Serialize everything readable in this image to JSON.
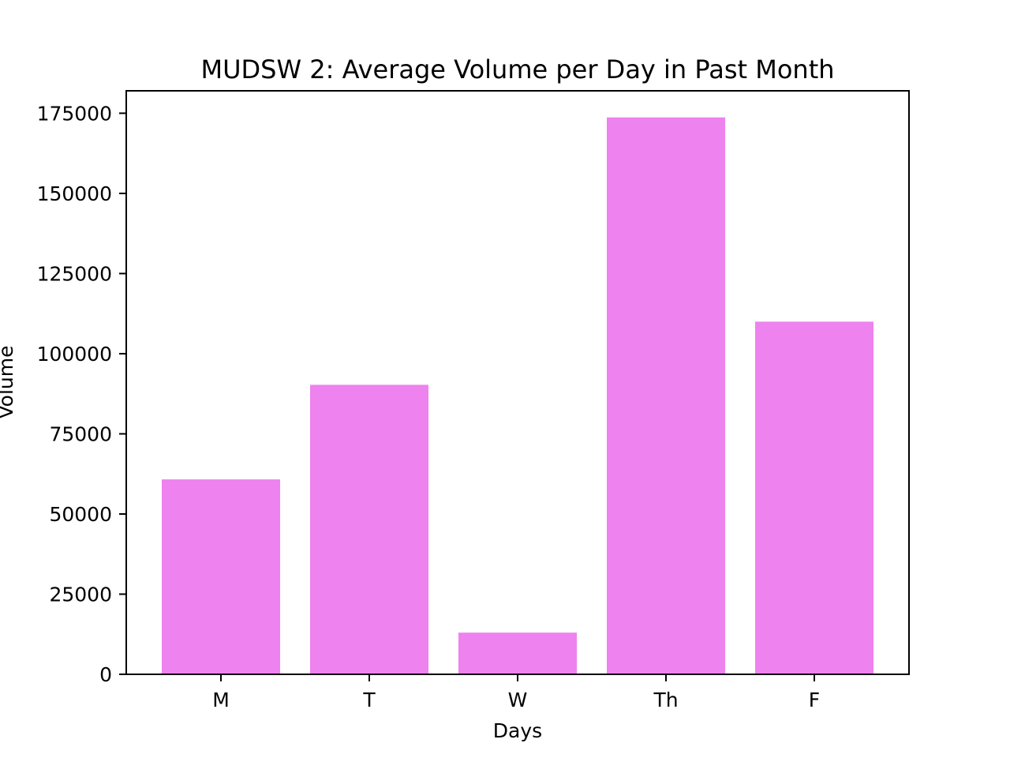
{
  "chart_data": {
    "type": "bar",
    "title": "MUDSW 2: Average Volume per Day in Past Month",
    "xlabel": "Days",
    "ylabel": "Volume",
    "categories": [
      "M",
      "T",
      "W",
      "Th",
      "F"
    ],
    "values": [
      60800,
      90300,
      13000,
      173700,
      110000
    ],
    "ylim": [
      0,
      182000
    ],
    "yticks": [
      0,
      25000,
      50000,
      75000,
      100000,
      125000,
      150000,
      175000
    ],
    "ytick_labels": [
      "0",
      "25000",
      "50000",
      "75000",
      "100000",
      "125000",
      "150000",
      "175000"
    ],
    "bar_color": "#ee82ee",
    "grid": false,
    "legend": "none"
  }
}
